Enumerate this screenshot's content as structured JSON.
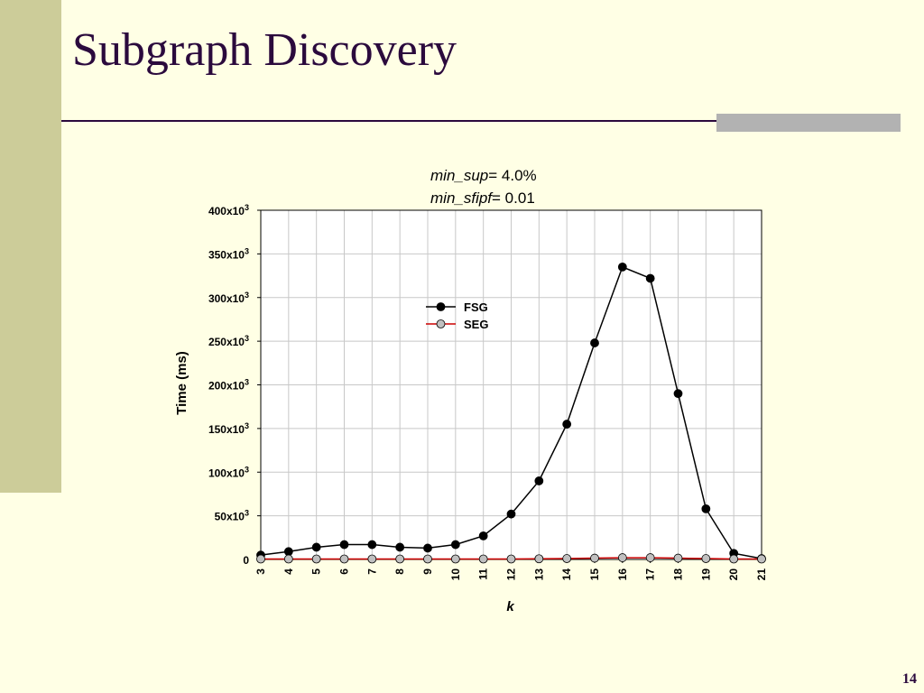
{
  "slide": {
    "title": "Subgraph Discovery",
    "page_number": "14"
  },
  "params": {
    "line1_name": "min_sup",
    "line1_rest": "= 4.0%",
    "line2_name": "min_sfipf",
    "line2_rest": "= 0.01"
  },
  "colors": {
    "title": "#2b0a3d",
    "background": "#ffffe5",
    "left_bar": "#cccc99",
    "accent_bar": "#b2b2b2",
    "fsg_line": "#000000",
    "seg_line": "#cc0000",
    "seg_marker": "#c0c0c0"
  },
  "chart_data": {
    "type": "line",
    "xlabel": "k",
    "ylabel": "Time (ms)",
    "x": [
      3,
      4,
      5,
      6,
      7,
      8,
      9,
      10,
      11,
      12,
      13,
      14,
      15,
      16,
      17,
      18,
      19,
      20,
      21
    ],
    "ylim": [
      0,
      400000
    ],
    "yticks": [
      {
        "value": 0,
        "label": "0"
      },
      {
        "value": 50000,
        "base": "50x10",
        "exp": "3"
      },
      {
        "value": 100000,
        "base": "100x10",
        "exp": "3"
      },
      {
        "value": 150000,
        "base": "150x10",
        "exp": "3"
      },
      {
        "value": 200000,
        "base": "200x10",
        "exp": "3"
      },
      {
        "value": 250000,
        "base": "250x10",
        "exp": "3"
      },
      {
        "value": 300000,
        "base": "300x10",
        "exp": "3"
      },
      {
        "value": 350000,
        "base": "350x10",
        "exp": "3"
      },
      {
        "value": 400000,
        "base": "400x10",
        "exp": "3"
      }
    ],
    "grid": true,
    "legend_position": "upper-center",
    "series": [
      {
        "name": "FSG",
        "values": [
          5000,
          9000,
          14000,
          17000,
          17000,
          14000,
          13000,
          17000,
          27000,
          52000,
          90000,
          155000,
          248000,
          335000,
          322000,
          190000,
          58000,
          7000,
          1000
        ]
      },
      {
        "name": "SEG",
        "values": [
          500,
          500,
          500,
          500,
          500,
          500,
          500,
          500,
          500,
          500,
          800,
          1000,
          1500,
          2000,
          2000,
          1500,
          1000,
          500,
          500
        ]
      }
    ]
  }
}
